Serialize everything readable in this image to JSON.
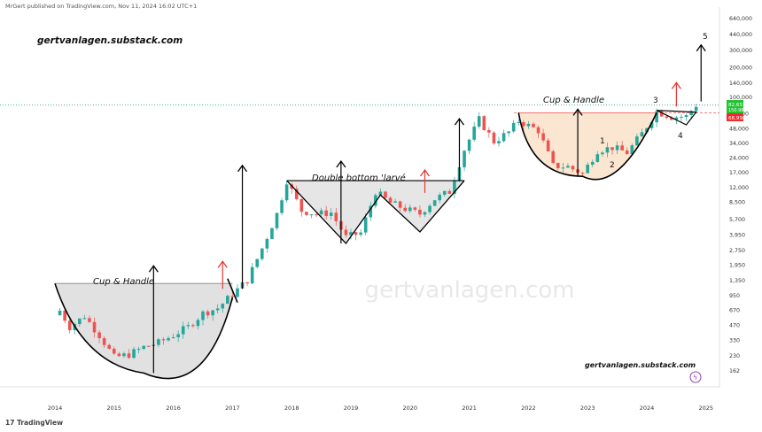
{
  "header": {
    "publisher_line": "MrGert published on TradingView.com, Nov 11, 2024 16:02 UTC+1"
  },
  "footer": {
    "brand": "TradingView"
  },
  "colors": {
    "up": "#26a69a",
    "down": "#ef5350",
    "pattern_line": "#000000",
    "breakout_arrow": "#e53935",
    "cup_fill_gray": "#dcdcdc",
    "cup_fill_orange": "#f9e3cc",
    "price_label_green": "#26c235",
    "price_label_red": "#ef2b2b"
  },
  "annotations": {
    "watermark_top": "gertvanlagen.substack.com",
    "watermark_bottom": "gertvanlagen.substack.com",
    "watermark_center": "gertvanlagen.com",
    "cup1_label": "Cup & Handle",
    "double_bottom_label": "Double bottom 'larvé",
    "cup2_label": "Cup & Handle",
    "wave_1": "1",
    "wave_2": "2",
    "wave_3": "3",
    "wave_4": "4",
    "wave_5": "5"
  },
  "price_labels": {
    "current_top": "82,651",
    "current_sub": "150.96",
    "red_level": "68,998"
  },
  "chart_data": {
    "type": "candlestick",
    "title": "",
    "scale": "log",
    "xlabel": "",
    "ylabel": "",
    "x_ticks": [
      "2014",
      "2015",
      "2016",
      "2017",
      "2018",
      "2019",
      "2020",
      "2021",
      "2022",
      "2023",
      "2024",
      "2025"
    ],
    "y_ticks": [
      "640,000",
      "440,000",
      "300,000",
      "200,000",
      "140,000",
      "100,000",
      "68,000",
      "48,000",
      "34,000",
      "24,000",
      "17,000",
      "12,000",
      "8,500",
      "5,700",
      "3,950",
      "2,750",
      "1,950",
      "1,350",
      "950",
      "670",
      "470",
      "330",
      "230",
      "162"
    ],
    "ylim": [
      130,
      700000
    ],
    "closes": [
      {
        "date": "2014-01",
        "close": 800
      },
      {
        "date": "2014-04",
        "close": 450
      },
      {
        "date": "2014-07",
        "close": 580
      },
      {
        "date": "2014-10",
        "close": 370
      },
      {
        "date": "2015-01",
        "close": 220
      },
      {
        "date": "2015-04",
        "close": 235
      },
      {
        "date": "2015-07",
        "close": 280
      },
      {
        "date": "2015-10",
        "close": 310
      },
      {
        "date": "2016-01",
        "close": 370
      },
      {
        "date": "2016-04",
        "close": 450
      },
      {
        "date": "2016-07",
        "close": 620
      },
      {
        "date": "2016-10",
        "close": 700
      },
      {
        "date": "2017-01",
        "close": 970
      },
      {
        "date": "2017-04",
        "close": 1350
      },
      {
        "date": "2017-07",
        "close": 2850
      },
      {
        "date": "2017-10",
        "close": 6400
      },
      {
        "date": "2017-12",
        "close": 14000
      },
      {
        "date": "2018-03",
        "close": 6900
      },
      {
        "date": "2018-06",
        "close": 6400
      },
      {
        "date": "2018-09",
        "close": 6600
      },
      {
        "date": "2018-12",
        "close": 3700
      },
      {
        "date": "2019-03",
        "close": 4100
      },
      {
        "date": "2019-06",
        "close": 10800
      },
      {
        "date": "2019-09",
        "close": 8300
      },
      {
        "date": "2019-12",
        "close": 7200
      },
      {
        "date": "2020-03",
        "close": 6400
      },
      {
        "date": "2020-06",
        "close": 9100
      },
      {
        "date": "2020-09",
        "close": 10800
      },
      {
        "date": "2020-12",
        "close": 29000
      },
      {
        "date": "2021-03",
        "close": 58800
      },
      {
        "date": "2021-06",
        "close": 35000
      },
      {
        "date": "2021-09",
        "close": 43800
      },
      {
        "date": "2021-11",
        "close": 57000
      },
      {
        "date": "2022-03",
        "close": 45500
      },
      {
        "date": "2022-06",
        "close": 19800
      },
      {
        "date": "2022-09",
        "close": 19400
      },
      {
        "date": "2022-12",
        "close": 16500
      },
      {
        "date": "2023-03",
        "close": 28500
      },
      {
        "date": "2023-06",
        "close": 30500
      },
      {
        "date": "2023-09",
        "close": 27000
      },
      {
        "date": "2023-12",
        "close": 42300
      },
      {
        "date": "2024-03",
        "close": 71000
      },
      {
        "date": "2024-06",
        "close": 62700
      },
      {
        "date": "2024-09",
        "close": 63300
      },
      {
        "date": "2024-11",
        "close": 82651
      }
    ],
    "patterns": [
      {
        "name": "Cup & Handle",
        "start": "2014-01",
        "end": "2017-01",
        "rim": 1250,
        "bottom": 180,
        "target_arrow_to": 20000
      },
      {
        "name": "Double bottom 'larvé",
        "start": "2017-12",
        "end": "2020-12",
        "neckline": 14000,
        "bottom": 3200
      },
      {
        "name": "Cup & Handle",
        "start": "2021-11",
        "end": "2024-03",
        "rim": 69000,
        "bottom": 15500,
        "target_arrow_to": 340000
      }
    ]
  }
}
